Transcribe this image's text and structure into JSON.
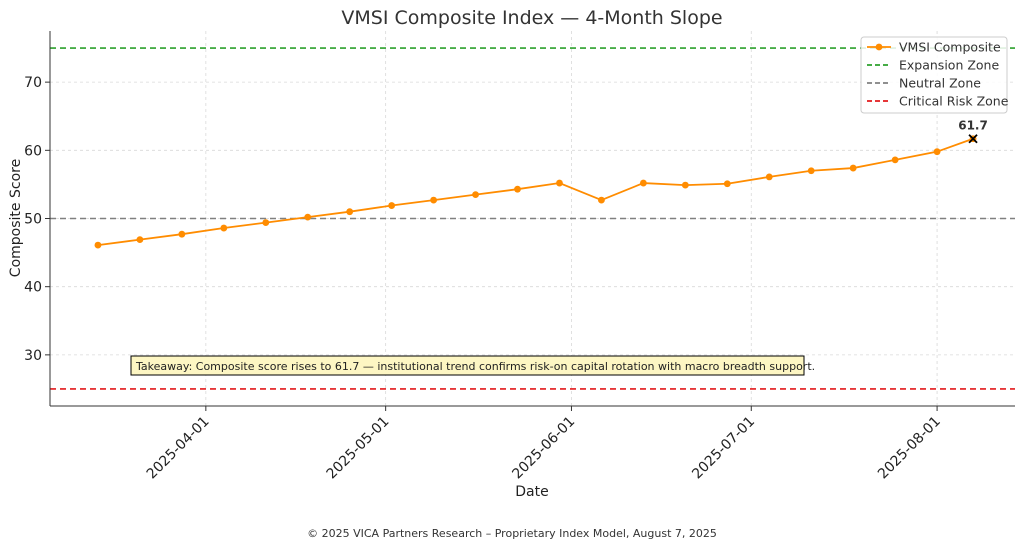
{
  "chart_data": {
    "type": "line",
    "title": "VMSI Composite Index — 4-Month Slope",
    "xlabel": "Date",
    "ylabel": "Composite Score",
    "x_ticks": [
      "2025-04-01",
      "2025-05-01",
      "2025-06-01",
      "2025-07-01",
      "2025-08-01"
    ],
    "y_ticks": [
      30,
      40,
      50,
      60,
      70
    ],
    "xlim": [
      "2025-03-06",
      "2025-08-14"
    ],
    "ylim": [
      22.5,
      77.5
    ],
    "grid": true,
    "legend_position": "top-right",
    "series": [
      {
        "name": "VMSI Composite",
        "color": "#ff8c00",
        "marker": "circle",
        "x": [
          "2025-03-14",
          "2025-03-21",
          "2025-03-28",
          "2025-04-04",
          "2025-04-11",
          "2025-04-18",
          "2025-04-25",
          "2025-05-02",
          "2025-05-09",
          "2025-05-16",
          "2025-05-23",
          "2025-05-30",
          "2025-06-06",
          "2025-06-13",
          "2025-06-20",
          "2025-06-27",
          "2025-07-04",
          "2025-07-11",
          "2025-07-18",
          "2025-07-25",
          "2025-08-01",
          "2025-08-07"
        ],
        "values": [
          46.1,
          46.9,
          47.7,
          48.6,
          49.4,
          50.2,
          51.0,
          51.9,
          52.7,
          53.5,
          54.3,
          55.2,
          52.7,
          55.2,
          54.9,
          55.1,
          56.1,
          57.0,
          57.4,
          58.6,
          59.8,
          61.7
        ]
      }
    ],
    "reference_lines": [
      {
        "name": "Expansion Zone",
        "value": 75,
        "color": "#2ca02c",
        "style": "dashed"
      },
      {
        "name": "Neutral Zone",
        "value": 50,
        "color": "#808080",
        "style": "dashed"
      },
      {
        "name": "Critical Risk Zone",
        "value": 25,
        "color": "#e31a1c",
        "style": "dashed"
      }
    ],
    "last_point_label": "61.7",
    "annotation": "Takeaway: Composite score rises to 61.7 — institutional trend confirms risk-on capital rotation with macro breadth support."
  },
  "footer": "© 2025 VICA Partners Research – Proprietary Index Model, August 7, 2025"
}
